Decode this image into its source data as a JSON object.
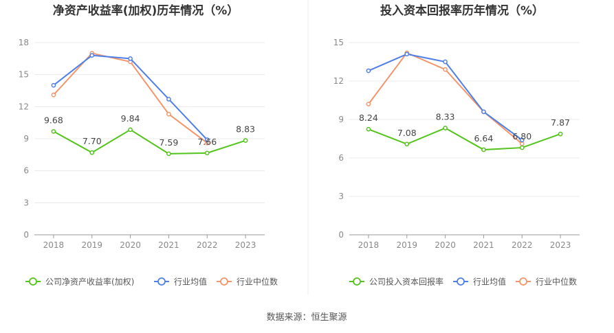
{
  "source_note": "数据来源：恒生聚源",
  "chart_data": [
    {
      "type": "line",
      "title": "净资产收益率(加权)历年情况（%）",
      "x": [
        "2018",
        "2019",
        "2020",
        "2021",
        "2022",
        "2023"
      ],
      "ylim": [
        0,
        18
      ],
      "yticks": [
        0,
        3,
        6,
        9,
        12,
        15,
        18
      ],
      "grid": true,
      "legend_position": "bottom",
      "series": [
        {
          "name": "公司净资产收益率(加权)",
          "color": "#52c41a",
          "values": [
            9.68,
            7.7,
            9.84,
            7.59,
            7.66,
            8.83
          ],
          "labels": [
            "9.68",
            "7.70",
            "9.84",
            "7.59",
            "7.66",
            "8.83"
          ]
        },
        {
          "name": "行业均值",
          "color": "#4e7ee8",
          "values": [
            14.0,
            16.8,
            16.5,
            12.7,
            8.9,
            null
          ]
        },
        {
          "name": "行业中位数",
          "color": "#f2956b",
          "values": [
            13.1,
            17.0,
            16.2,
            11.3,
            8.6,
            null
          ]
        }
      ]
    },
    {
      "type": "line",
      "title": "投入资本回报率历年情况（%）",
      "x": [
        "2018",
        "2019",
        "2020",
        "2021",
        "2022",
        "2023"
      ],
      "ylim": [
        0,
        15
      ],
      "yticks": [
        0,
        3,
        6,
        9,
        12,
        15
      ],
      "grid": true,
      "legend_position": "bottom",
      "series": [
        {
          "name": "公司投入资本回报率",
          "color": "#52c41a",
          "values": [
            8.24,
            7.08,
            8.33,
            6.64,
            6.8,
            7.87
          ],
          "labels": [
            "8.24",
            "7.08",
            "8.33",
            "6.64",
            "6.80",
            "7.87"
          ]
        },
        {
          "name": "行业均值",
          "color": "#4e7ee8",
          "values": [
            12.8,
            14.1,
            13.5,
            9.6,
            7.4,
            null
          ]
        },
        {
          "name": "行业中位数",
          "color": "#f2956b",
          "values": [
            10.2,
            14.2,
            12.9,
            9.6,
            7.1,
            null
          ]
        }
      ]
    }
  ]
}
